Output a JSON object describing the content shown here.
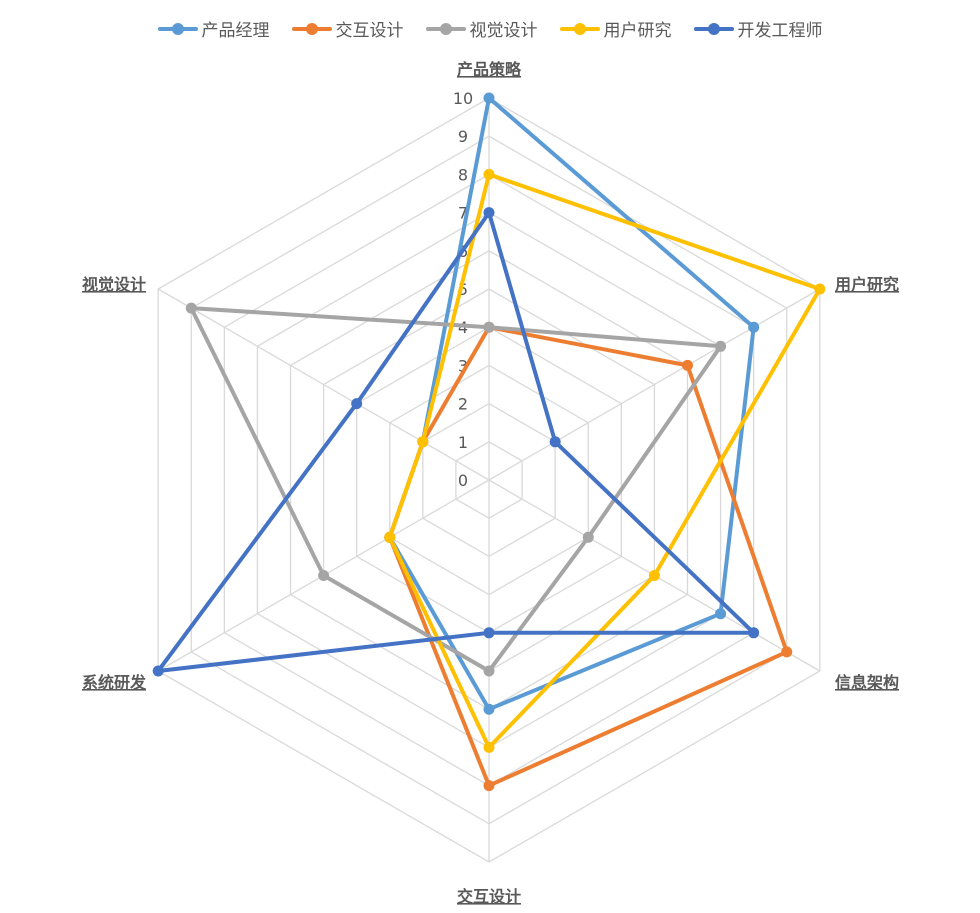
{
  "chart_data": {
    "type": "radar",
    "categories": [
      "产品策略",
      "用户研究",
      "信息架构",
      "交互设计",
      "系统研发",
      "视觉设计"
    ],
    "rlim": [
      0,
      10
    ],
    "ticks": [
      "0",
      "1",
      "2",
      "3",
      "4",
      "5",
      "6",
      "7",
      "8",
      "9",
      "10"
    ],
    "grid": true,
    "legend": "top",
    "series": [
      {
        "name": "产品经理",
        "color": "#5B9BD5",
        "values": [
          10,
          8,
          7,
          6,
          3,
          2
        ]
      },
      {
        "name": "交互设计",
        "color": "#ED7D31",
        "values": [
          4,
          6,
          9,
          8,
          3,
          2
        ]
      },
      {
        "name": "视觉设计",
        "color": "#A5A5A5",
        "values": [
          4,
          7,
          3,
          5,
          5,
          9
        ]
      },
      {
        "name": "用户研究",
        "color": "#FFC000",
        "values": [
          8,
          10,
          5,
          7,
          3,
          2
        ]
      },
      {
        "name": "开发工程师",
        "color": "#4472C4",
        "values": [
          7,
          2,
          8,
          4,
          10,
          4
        ]
      }
    ]
  }
}
